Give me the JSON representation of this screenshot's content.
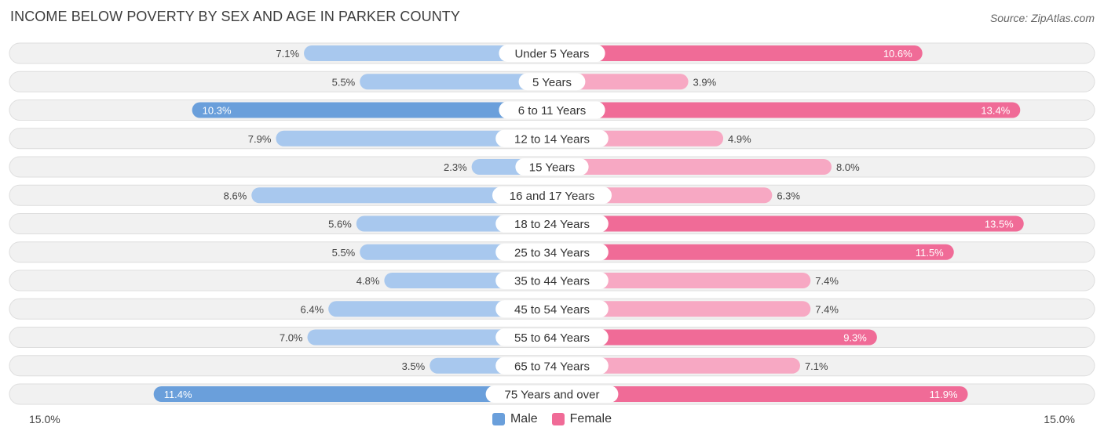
{
  "title": "INCOME BELOW POVERTY BY SEX AND AGE IN PARKER COUNTY",
  "source": "Source: ZipAtlas.com",
  "colors": {
    "male_strong": "#6a9fdb",
    "male_light": "#a8c8ee",
    "female_strong": "#f06b97",
    "female_light": "#f7a8c3",
    "row_background": "#f1f1f1",
    "row_border": "#dedede"
  },
  "legend": {
    "male_label": "Male",
    "female_label": "Female"
  },
  "axis": {
    "left_label": "15.0%",
    "right_label": "15.0%"
  },
  "chart_data": {
    "type": "bar",
    "orientation": "horizontal-diverging",
    "title": "INCOME BELOW POVERTY BY SEX AND AGE IN PARKER COUNTY",
    "categories": [
      "Under 5 Years",
      "5 Years",
      "6 to 11 Years",
      "12 to 14 Years",
      "15 Years",
      "16 and 17 Years",
      "18 to 24 Years",
      "25 to 34 Years",
      "35 to 44 Years",
      "45 to 54 Years",
      "55 to 64 Years",
      "65 to 74 Years",
      "75 Years and over"
    ],
    "series": [
      {
        "name": "Male",
        "values": [
          7.1,
          5.5,
          10.3,
          7.9,
          2.3,
          8.6,
          5.6,
          5.5,
          4.8,
          6.4,
          7.0,
          3.5,
          11.4
        ],
        "labels": [
          "7.1%",
          "5.5%",
          "10.3%",
          "7.9%",
          "2.3%",
          "8.6%",
          "5.6%",
          "5.5%",
          "4.8%",
          "6.4%",
          "7.0%",
          "3.5%",
          "11.4%"
        ]
      },
      {
        "name": "Female",
        "values": [
          10.6,
          3.9,
          13.4,
          4.9,
          8.0,
          6.3,
          13.5,
          11.5,
          7.4,
          7.4,
          9.3,
          7.1,
          11.9
        ],
        "labels": [
          "10.6%",
          "3.9%",
          "13.4%",
          "4.9%",
          "8.0%",
          "6.3%",
          "13.5%",
          "11.5%",
          "7.4%",
          "7.4%",
          "9.3%",
          "7.1%",
          "11.9%"
        ]
      }
    ],
    "xlim": [
      0,
      15
    ],
    "grid": false,
    "legend_position": "bottom-center"
  }
}
